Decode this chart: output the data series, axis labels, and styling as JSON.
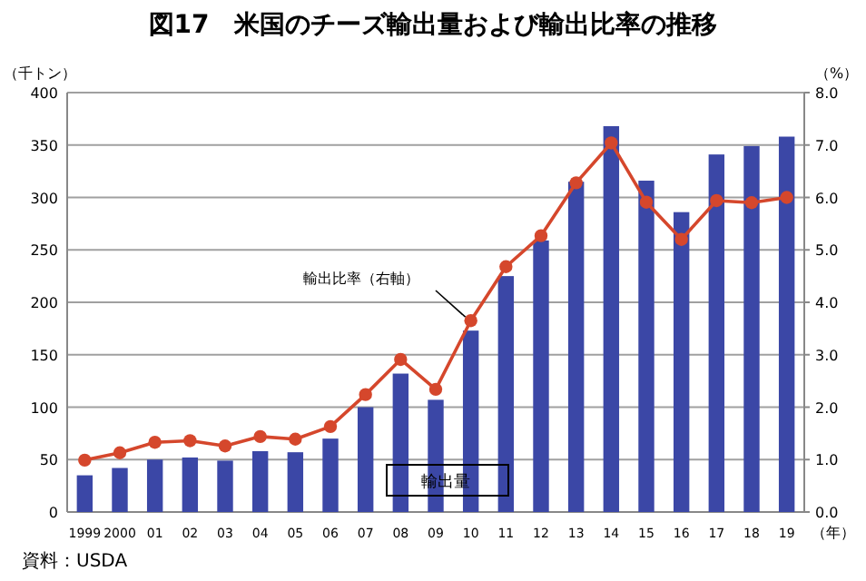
{
  "chart_data": {
    "type": "bar",
    "title": "図17　米国のチーズ輸出量および輸出比率の推移",
    "categories": [
      "1999",
      "2000",
      "01",
      "02",
      "03",
      "04",
      "05",
      "06",
      "07",
      "08",
      "09",
      "10",
      "11",
      "12",
      "13",
      "14",
      "15",
      "16",
      "17",
      "18",
      "19"
    ],
    "series": [
      {
        "name": "輸出量",
        "color": "#3b47a6",
        "values": [
          35,
          42,
          50,
          52,
          49,
          58,
          57,
          70,
          100,
          132,
          107,
          173,
          225,
          259,
          315,
          368,
          316,
          286,
          341,
          349,
          358
        ]
      },
      {
        "name": "輸出比率（右軸）",
        "type": "line",
        "axis": "y2",
        "color": "#d5472c",
        "marker": "circle",
        "values": [
          0.99,
          1.13,
          1.33,
          1.36,
          1.26,
          1.44,
          1.39,
          1.63,
          2.24,
          2.91,
          2.34,
          3.65,
          4.68,
          5.27,
          6.28,
          7.04,
          5.91,
          5.2,
          5.94,
          5.9,
          6.0
        ]
      }
    ],
    "ylabel": "（千トン）",
    "y2label": "（%）",
    "xlabel": "（年）",
    "ylim": [
      0,
      400
    ],
    "yticks": [
      0,
      50,
      100,
      150,
      200,
      250,
      300,
      350,
      400
    ],
    "y2lim": [
      0,
      8
    ],
    "y2ticks": [
      {
        "value": 0,
        "label": "0.0"
      },
      {
        "value": 1,
        "label": "1.0"
      },
      {
        "value": 2,
        "label": "2.0"
      },
      {
        "value": 3,
        "label": "3.0"
      },
      {
        "value": 4,
        "label": "4.0"
      },
      {
        "value": 5,
        "label": "5.0"
      },
      {
        "value": 6,
        "label": "6.0"
      },
      {
        "value": 7,
        "label": "7.0"
      },
      {
        "value": 8,
        "label": "8.0"
      }
    ],
    "grid": "y",
    "legend": false,
    "annotations": [
      "資料：USDA"
    ]
  }
}
